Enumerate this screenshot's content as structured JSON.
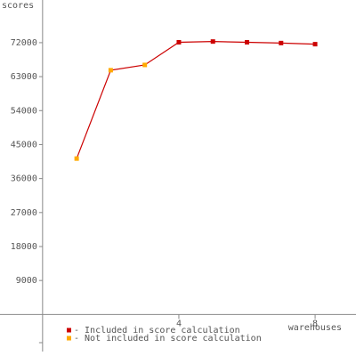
{
  "chart_data": {
    "type": "line",
    "y_label": "scores",
    "x_label": "warehouses",
    "x": [
      1,
      2,
      3,
      4,
      5,
      6,
      7,
      8
    ],
    "line_color": "#cc0000",
    "series": [
      {
        "name": "- Included in score calculation",
        "color": "#cc0000",
        "values": [
          null,
          null,
          null,
          72100,
          72300,
          72100,
          71900,
          71600
        ]
      },
      {
        "name": "- Not included in score calculation",
        "color": "#ffaa00",
        "values": [
          41300,
          64700,
          66100,
          null,
          null,
          null,
          null,
          null
        ]
      }
    ],
    "xlim": [
      -1.25,
      9.2
    ],
    "xticks": [
      4,
      8
    ],
    "ylim": [
      -11000,
      83300
    ],
    "yticks": [
      9000,
      18000,
      27000,
      36000,
      45000,
      54000,
      63000,
      72000
    ]
  }
}
